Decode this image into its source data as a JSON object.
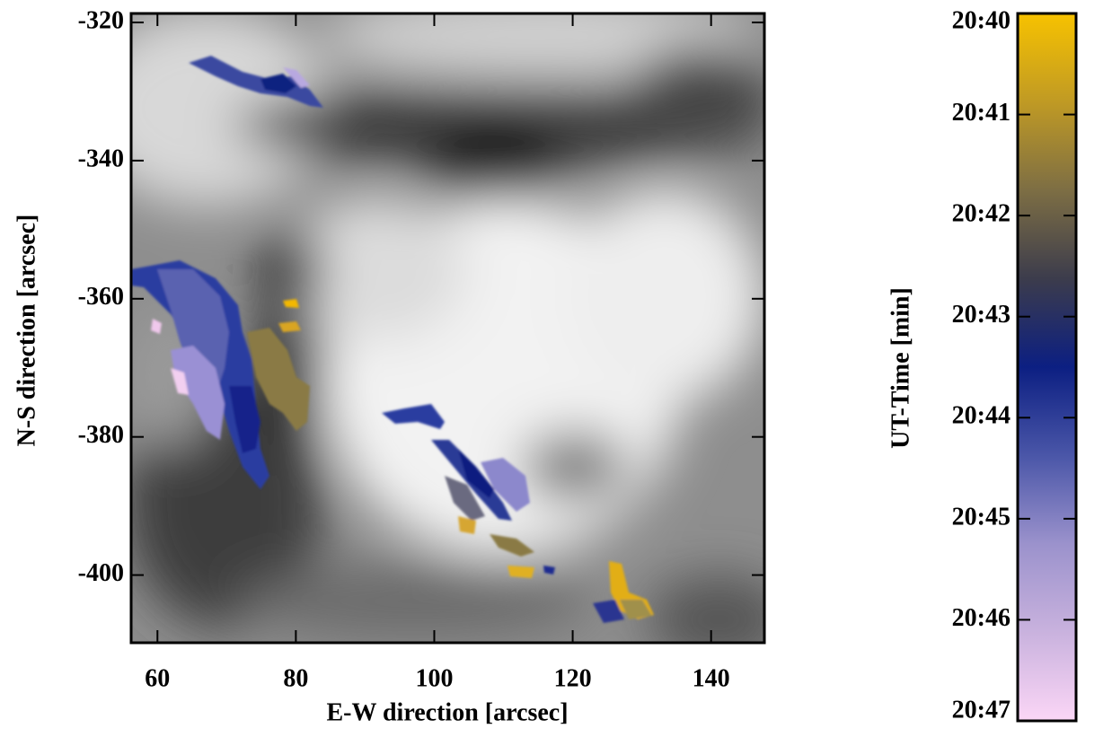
{
  "chart_data": {
    "type": "image",
    "xlabel": "E-W direction [arcsec]",
    "ylabel": "N-S direction [arcsec]",
    "xlim": [
      56.2,
      147.7
    ],
    "ylim": [
      -409.8,
      -318.7
    ],
    "y_inverted": true,
    "xticks": [
      60,
      80,
      100,
      120,
      140
    ],
    "yticks": [
      -320,
      -340,
      -360,
      -380,
      -400
    ],
    "colorbar": {
      "label": "UT-Time [min]",
      "ticks": [
        "20:40",
        "20:41",
        "20:42",
        "20:43",
        "20:44",
        "20:45",
        "20:46",
        "20:47"
      ],
      "colormap": [
        "#f7c200",
        "#c09a24",
        "#7d6e44",
        "#3c3c4c",
        "#0c1f82",
        "#4a56a8",
        "#9b92cc",
        "#c9b2de",
        "#fbd6f6"
      ]
    }
  }
}
